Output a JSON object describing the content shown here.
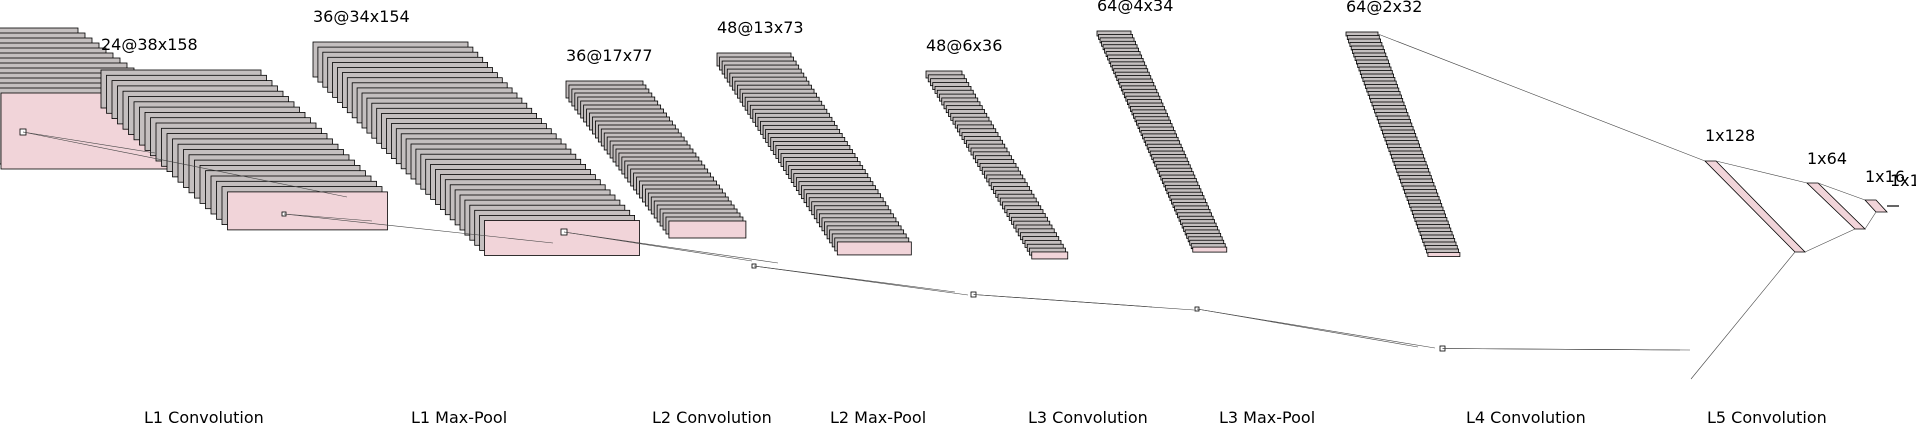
{
  "diagram": {
    "blocks": [
      {
        "key": "input",
        "label": "",
        "maps": 14
      },
      {
        "key": "c1",
        "label": "24@38x158",
        "maps": 24
      },
      {
        "key": "p1",
        "label": "36@34x154",
        "maps": 36
      },
      {
        "key": "c2",
        "label": "36@17x77",
        "maps": 36
      },
      {
        "key": "p2",
        "label": "48@13x73",
        "maps": 48
      },
      {
        "key": "c3",
        "label": "48@6x36",
        "maps": 48
      },
      {
        "key": "p3",
        "label": "64@4x34",
        "maps": 64
      },
      {
        "key": "c4",
        "label": "64@2x32",
        "maps": 64
      },
      {
        "key": "d1",
        "label": "1x128"
      },
      {
        "key": "d2",
        "label": "1x64"
      },
      {
        "key": "d3",
        "label": "1x16"
      },
      {
        "key": "d4",
        "label": "1x1"
      }
    ],
    "captions": [
      "L1 Convolution",
      "L1 Max-Pool",
      "L2 Convolution",
      "L2 Max-Pool",
      "L3 Convolution",
      "L3 Max-Pool",
      "L4 Convolution",
      "L5 Convolution"
    ],
    "colors": {
      "map_fill": "#c4bfbf",
      "front_fill": "#f1d4d9",
      "edge": "#000000",
      "connector": "#444444"
    }
  }
}
